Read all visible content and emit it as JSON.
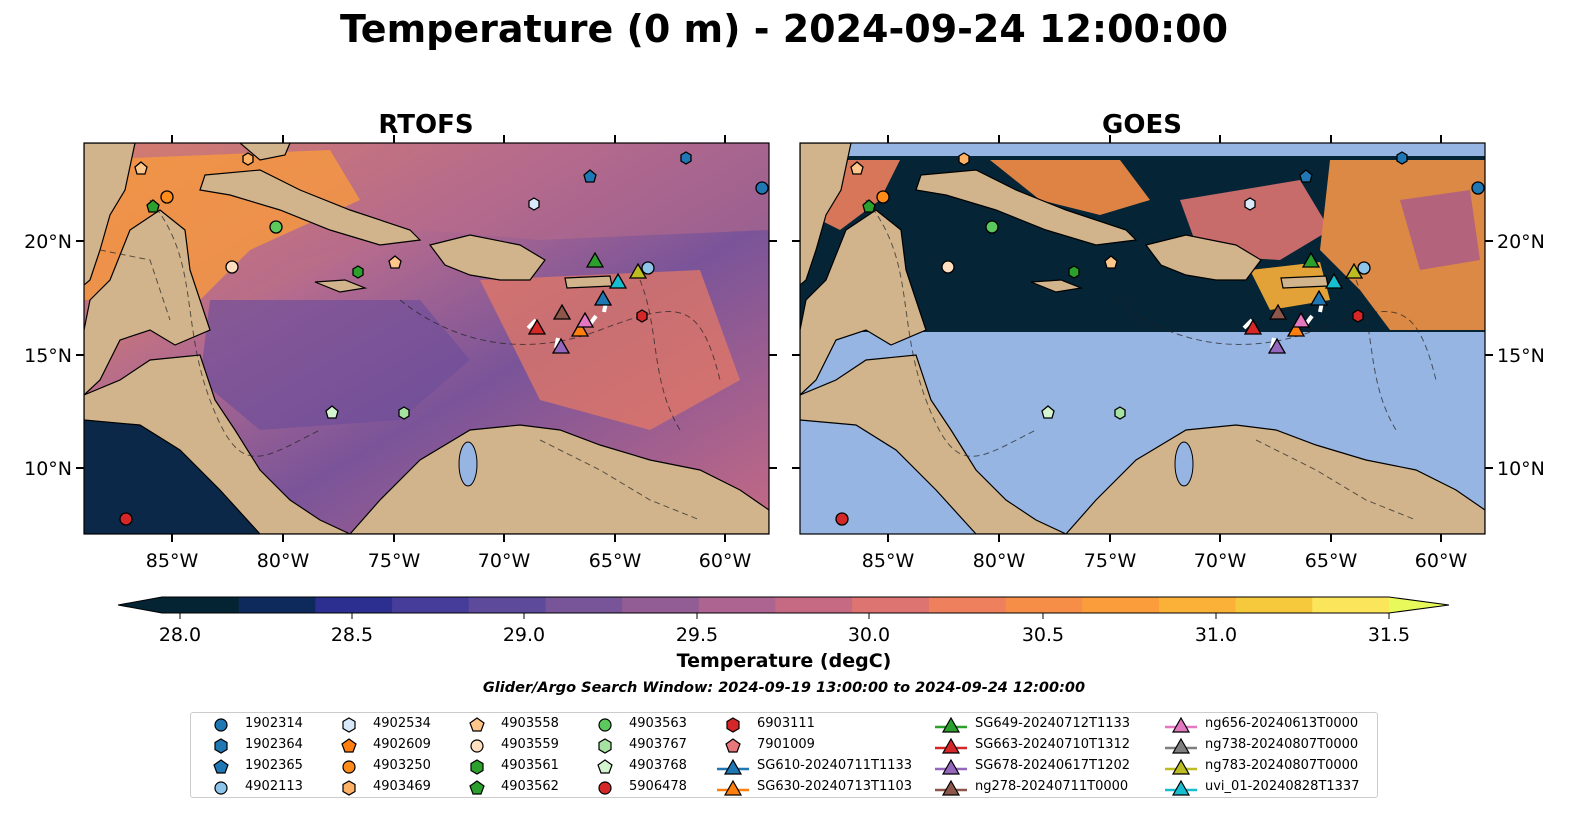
{
  "title": "Temperature (0 m) - 2024-09-24 12:00:00",
  "panels": [
    {
      "title": "RTOFS"
    },
    {
      "title": "GOES"
    }
  ],
  "axes": {
    "lon_ticks": [
      "85°W",
      "80°W",
      "75°W",
      "70°W",
      "65°W",
      "60°W"
    ],
    "lat_ticks": [
      "20°N",
      "15°N",
      "10°N"
    ]
  },
  "colorbar": {
    "label": "Temperature (degC)",
    "ticks": [
      "28.0",
      "28.5",
      "29.0",
      "29.5",
      "30.0",
      "30.5",
      "31.0",
      "31.5"
    ],
    "min": 28.0,
    "max": 31.5,
    "colors": [
      "#042333",
      "#0e2a5c",
      "#2c2f8f",
      "#463c9a",
      "#5e4a9b",
      "#785499",
      "#925d95",
      "#ad6490",
      "#c66a84",
      "#dd7471",
      "#ee805d",
      "#f78e47",
      "#fa9d3a",
      "#fbb038",
      "#f6c93c",
      "#fbe55a"
    ],
    "extend_low": "#042333",
    "extend_high": "#e8fa5b"
  },
  "window_text": "Glider/Argo Search Window: 2024-09-19 13:00:00 to 2024-09-24 12:00:00",
  "legend": [
    {
      "label": "1902314",
      "marker": "circle",
      "color": "#1f77b4"
    },
    {
      "label": "1902364",
      "marker": "hexagon",
      "color": "#1f77b4"
    },
    {
      "label": "1902365",
      "marker": "pentagon",
      "color": "#1f77b4"
    },
    {
      "label": "4902113",
      "marker": "circle",
      "color": "#8fc4ea"
    },
    {
      "label": "4902534",
      "marker": "hexagon",
      "color": "#d8eafa"
    },
    {
      "label": "4902609",
      "marker": "pentagon",
      "color": "#ff7f0e"
    },
    {
      "label": "4903250",
      "marker": "circle",
      "color": "#ff8c1a"
    },
    {
      "label": "4903469",
      "marker": "hexagon",
      "color": "#ffb266"
    },
    {
      "label": "4903558",
      "marker": "pentagon",
      "color": "#ffc68c"
    },
    {
      "label": "4903559",
      "marker": "circle",
      "color": "#ffdfbf"
    },
    {
      "label": "4903561",
      "marker": "hexagon",
      "color": "#2ca02c"
    },
    {
      "label": "4903562",
      "marker": "pentagon",
      "color": "#2ca02c"
    },
    {
      "label": "4903563",
      "marker": "circle",
      "color": "#5cc95c"
    },
    {
      "label": "4903767",
      "marker": "hexagon",
      "color": "#a6e3a1"
    },
    {
      "label": "4903768",
      "marker": "pentagon",
      "color": "#d5f5d0"
    },
    {
      "label": "5906478",
      "marker": "circle",
      "color": "#d62728"
    },
    {
      "label": "6903111",
      "marker": "hexagon",
      "color": "#d62728"
    },
    {
      "label": "7901009",
      "marker": "pentagon",
      "color": "#e8767a"
    },
    {
      "label": "SG610-20240711T1133",
      "marker": "triangle-line",
      "color": "#1f77b4"
    },
    {
      "label": "SG630-20240713T1103",
      "marker": "triangle-line",
      "color": "#ff7f0e"
    },
    {
      "label": "SG649-20240712T1133",
      "marker": "triangle-line",
      "color": "#2ca02c"
    },
    {
      "label": "SG663-20240710T1312",
      "marker": "triangle-line",
      "color": "#d62728"
    },
    {
      "label": "SG678-20240617T1202",
      "marker": "triangle-line",
      "color": "#9467bd"
    },
    {
      "label": "ng278-20240711T0000",
      "marker": "triangle-line",
      "color": "#8c564b"
    },
    {
      "label": "ng656-20240613T0000",
      "marker": "triangle-line",
      "color": "#e377c2"
    },
    {
      "label": "ng738-20240807T0000",
      "marker": "triangle-line",
      "color": "#7f7f7f"
    },
    {
      "label": "ng783-20240807T0000",
      "marker": "triangle-line",
      "color": "#bcbd22"
    },
    {
      "label": "uvi_01-20240828T1337",
      "marker": "triangle-line",
      "color": "#17becf"
    }
  ],
  "colors": {
    "land": "#d2b48c",
    "goes_missing": "#97b5e2",
    "river": "#9bb0c8"
  }
}
